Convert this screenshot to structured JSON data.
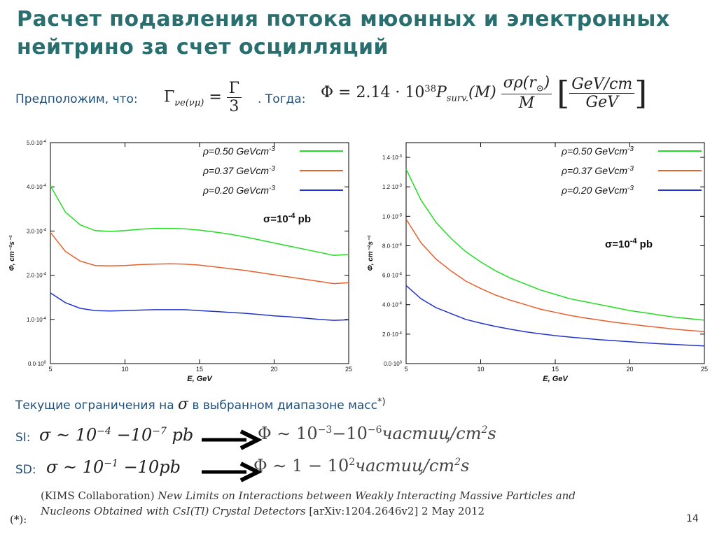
{
  "title": {
    "line1": "Расчет подавления потока мюонных и электронных",
    "line2": "нейтрино за счет осцилляций"
  },
  "formula": {
    "lead": "Предположим, что:",
    "gamma_lhs": "Γ",
    "gamma_sub": "νe(νμ)",
    "gamma_num": "Γ",
    "gamma_den": "3",
    "then": ". Тогда:",
    "phi_prefix": "Φ = 2.14 · 10",
    "phi_exp": "38",
    "psurv": "P",
    "psurv_sub": "surv.",
    "psurv_arg": "(M)",
    "frac_num": "σρ(r",
    "sun": "⊙",
    "frac_num_end": ")",
    "frac_den": "M",
    "units_num": "GeV/cm",
    "units_den": "GeV"
  },
  "chart_data": [
    {
      "type": "line",
      "xlabel": "E, GeV",
      "ylabel": "Φ, cm⁻²s⁻¹",
      "xlim": [
        5,
        25
      ],
      "ylim": [
        0,
        0.0005
      ],
      "xticks": [
        5,
        10,
        15,
        20,
        25
      ],
      "yticks": [
        {
          "v": 0.0,
          "m": "0.0·10",
          "e": "0"
        },
        {
          "v": 0.0001,
          "m": "1.0·10",
          "e": "-4"
        },
        {
          "v": 0.0002,
          "m": "2.0·10",
          "e": "-4"
        },
        {
          "v": 0.0003,
          "m": "3.0·10",
          "e": "-4"
        },
        {
          "v": 0.0004,
          "m": "4.0·10",
          "e": "-4"
        },
        {
          "v": 0.0005,
          "m": "5.0·10",
          "e": "-4"
        }
      ],
      "annotation": {
        "main": "σ=10",
        "exp": "-4",
        "unit": " pb"
      },
      "x": [
        5,
        6,
        7,
        8,
        9,
        10,
        11,
        12,
        13,
        14,
        15,
        16,
        17,
        18,
        19,
        20,
        21,
        22,
        23,
        24,
        25
      ],
      "series": [
        {
          "name": "ρ=0.50 GeVcm",
          "exp": "-3",
          "color": "#22dd22",
          "values": [
            0.000402,
            0.000343,
            0.000314,
            0.000301,
            0.000299,
            0.000301,
            0.000304,
            0.000306,
            0.000306,
            0.000305,
            0.000302,
            0.000298,
            0.000293,
            0.000287,
            0.00028,
            0.000273,
            0.000266,
            0.000259,
            0.000252,
            0.000245,
            0.000247
          ]
        },
        {
          "name": "ρ=0.37 GeVcm",
          "exp": "-3",
          "color": "#e8602c",
          "values": [
            0.000297,
            0.000254,
            0.000232,
            0.000222,
            0.000221,
            0.000222,
            0.000224,
            0.000225,
            0.000226,
            0.000225,
            0.000223,
            0.000219,
            0.000215,
            0.000211,
            0.000206,
            0.000201,
            0.000196,
            0.000191,
            0.000186,
            0.000181,
            0.000183
          ]
        },
        {
          "name": "ρ=0.20 GeVcm",
          "exp": "-3",
          "color": "#2233cc",
          "values": [
            0.00016,
            0.000138,
            0.000125,
            0.00012,
            0.000119,
            0.00012,
            0.000121,
            0.000122,
            0.000122,
            0.000122,
            0.00012,
            0.000118,
            0.000116,
            0.000114,
            0.000111,
            0.000108,
            0.000106,
            0.000103,
            0.0001,
            9.8e-05,
            9.9e-05
          ]
        }
      ]
    },
    {
      "type": "line",
      "xlabel": "E, GeV",
      "ylabel": "Φ, cm⁻²s⁻¹",
      "xlim": [
        5,
        25
      ],
      "ylim": [
        0,
        0.0015
      ],
      "xticks": [
        5,
        10,
        15,
        20,
        25
      ],
      "yticks": [
        {
          "v": 0.0,
          "m": "0.0·10",
          "e": "0"
        },
        {
          "v": 0.0002,
          "m": "2.0·10",
          "e": "-4"
        },
        {
          "v": 0.0004,
          "m": "4.0·10",
          "e": "-4"
        },
        {
          "v": 0.0006,
          "m": "6.0·10",
          "e": "-4"
        },
        {
          "v": 0.0008,
          "m": "8.0·10",
          "e": "-4"
        },
        {
          "v": 0.001,
          "m": "1.0·10",
          "e": "-3"
        },
        {
          "v": 0.0012,
          "m": "1.2·10",
          "e": "-3"
        },
        {
          "v": 0.0014,
          "m": "1.4·10",
          "e": "-3"
        }
      ],
      "annotation": {
        "main": "σ=10",
        "exp": "-4",
        "unit": " pb"
      },
      "x": [
        5,
        6,
        7,
        8,
        9,
        10,
        11,
        12,
        13,
        14,
        15,
        16,
        17,
        18,
        19,
        20,
        21,
        22,
        23,
        24,
        25
      ],
      "series": [
        {
          "name": "ρ=0.50 GeVcm",
          "exp": "-3",
          "color": "#22dd22",
          "values": [
            0.00132,
            0.00111,
            0.00096,
            0.00085,
            0.00076,
            0.00069,
            0.00063,
            0.00058,
            0.00054,
            0.0005,
            0.00047,
            0.00044,
            0.00042,
            0.0004,
            0.00038,
            0.00036,
            0.000345,
            0.00033,
            0.000315,
            0.000305,
            0.000295
          ]
        },
        {
          "name": "ρ=0.37 GeVcm",
          "exp": "-3",
          "color": "#e8602c",
          "values": [
            0.00098,
            0.00082,
            0.00071,
            0.00063,
            0.00056,
            0.00051,
            0.000465,
            0.00043,
            0.0004,
            0.00037,
            0.000348,
            0.000327,
            0.00031,
            0.000295,
            0.00028,
            0.000268,
            0.000256,
            0.000245,
            0.000234,
            0.000225,
            0.000217
          ]
        },
        {
          "name": "ρ=0.20 GeVcm",
          "exp": "-3",
          "color": "#2233cc",
          "values": [
            0.00053,
            0.00044,
            0.00038,
            0.00034,
            0.0003,
            0.000275,
            0.000252,
            0.000233,
            0.000216,
            0.000202,
            0.00019,
            0.00018,
            0.000171,
            0.000162,
            0.000155,
            0.000148,
            0.000141,
            0.000135,
            0.00013,
            0.000125,
            0.00012
          ]
        }
      ]
    }
  ],
  "limits": {
    "text": "Текущие ограничения на",
    "sigma": "σ",
    "text2": " в выбранном диапазоне масс",
    "footmark": "*)"
  },
  "si": {
    "label": "SI:",
    "lhs": "σ ~ 10",
    "e1": "−4",
    "mid": " −10",
    "e2": "−7",
    "unit": " pb",
    "rhs_pre": "Φ ∼ 10",
    "re1": "−3",
    "rmid": "−10",
    "re2": "−6",
    "rhs_unit": "частиц/cm",
    "rexp": "2",
    "rtail": "s"
  },
  "sd": {
    "label": "SD:",
    "lhs": "σ ~ 10",
    "e1": "−1",
    "mid": " −10",
    "unit": "pb",
    "rhs_pre": "Φ ∼ 1 − 10",
    "re1": "2",
    "rhs_unit": "частиц/cm",
    "rexp": "2",
    "rtail": "s"
  },
  "reference": {
    "p1": "(KIMS Collaboration) ",
    "p2": "New Limits on Interactions between Weakly Interacting Massive Particles and Nucleons Obtained with CsI(Tl) Crystal Detectors",
    "p3": " [arXiv:1204.2646v2] 2 May 2012"
  },
  "footnote_marker": "(*):",
  "page_number": "14"
}
